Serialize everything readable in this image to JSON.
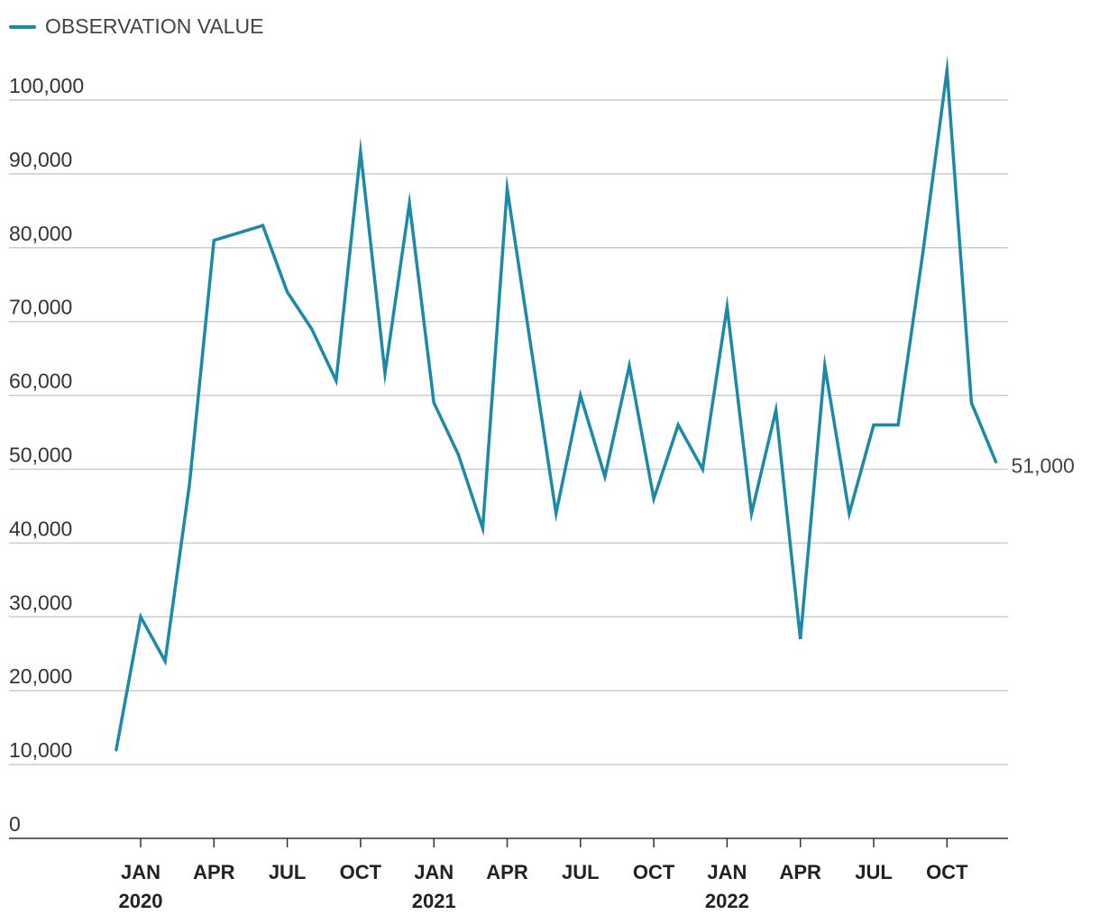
{
  "legend": {
    "label": "OBSERVATION VALUE"
  },
  "colors": {
    "series": "#1a8aa8",
    "grid": "#cccccc",
    "axis": "#333333"
  },
  "chart_data": {
    "type": "line",
    "title": "",
    "xlabel": "",
    "ylabel": "",
    "ylim": [
      0,
      100000
    ],
    "yticks": [
      {
        "value": 0,
        "label": "0"
      },
      {
        "value": 10000,
        "label": "10,000"
      },
      {
        "value": 20000,
        "label": "20,000"
      },
      {
        "value": 30000,
        "label": "30,000"
      },
      {
        "value": 40000,
        "label": "40,000"
      },
      {
        "value": 50000,
        "label": "50,000"
      },
      {
        "value": 60000,
        "label": "60,000"
      },
      {
        "value": 70000,
        "label": "70,000"
      },
      {
        "value": 80000,
        "label": "80,000"
      },
      {
        "value": 90000,
        "label": "90,000"
      },
      {
        "value": 100000,
        "label": "100,000"
      }
    ],
    "xticks": [
      {
        "x": "2020-01",
        "label": "JAN",
        "year": "2020"
      },
      {
        "x": "2020-04",
        "label": "APR"
      },
      {
        "x": "2020-07",
        "label": "JUL"
      },
      {
        "x": "2020-10",
        "label": "OCT"
      },
      {
        "x": "2021-01",
        "label": "JAN",
        "year": "2021"
      },
      {
        "x": "2021-04",
        "label": "APR"
      },
      {
        "x": "2021-07",
        "label": "JUL"
      },
      {
        "x": "2021-10",
        "label": "OCT"
      },
      {
        "x": "2022-01",
        "label": "JAN",
        "year": "2022"
      },
      {
        "x": "2022-04",
        "label": "APR"
      },
      {
        "x": "2022-07",
        "label": "JUL"
      },
      {
        "x": "2022-10",
        "label": "OCT"
      }
    ],
    "grid": true,
    "legend_position": "top-left",
    "end_label": "51,000",
    "series": [
      {
        "name": "OBSERVATION VALUE",
        "x": [
          "2019-12",
          "2020-01",
          "2020-02",
          "2020-03",
          "2020-04",
          "2020-05",
          "2020-06",
          "2020-07",
          "2020-08",
          "2020-09",
          "2020-10",
          "2020-11",
          "2020-12",
          "2021-01",
          "2021-02",
          "2021-03",
          "2021-04",
          "2021-05",
          "2021-06",
          "2021-07",
          "2021-08",
          "2021-09",
          "2021-10",
          "2021-11",
          "2021-12",
          "2022-01",
          "2022-02",
          "2022-03",
          "2022-04",
          "2022-05",
          "2022-06",
          "2022-07",
          "2022-08",
          "2022-09",
          "2022-10",
          "2022-11",
          "2022-12"
        ],
        "values": [
          12000,
          30000,
          24000,
          48000,
          81000,
          82000,
          83000,
          74000,
          69000,
          62000,
          93000,
          63000,
          86000,
          59000,
          52000,
          42000,
          88000,
          66000,
          44000,
          60000,
          49000,
          64000,
          46000,
          56000,
          50000,
          72000,
          44000,
          58000,
          27000,
          64000,
          44000,
          56000,
          56000,
          79000,
          104000,
          59000,
          51000
        ]
      }
    ]
  }
}
